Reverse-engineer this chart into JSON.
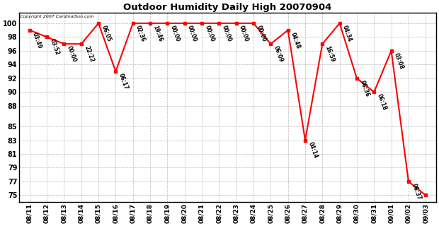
{
  "title": "Outdoor Humidity Daily High 20070904",
  "dates": [
    "08/11",
    "08/12",
    "08/13",
    "08/14",
    "08/15",
    "08/16",
    "08/17",
    "08/18",
    "08/19",
    "08/20",
    "08/21",
    "08/22",
    "08/23",
    "08/24",
    "08/25",
    "08/26",
    "08/27",
    "08/28",
    "08/29",
    "08/30",
    "08/31",
    "09/01",
    "09/02",
    "09/03"
  ],
  "values": [
    99,
    98,
    97,
    97,
    100,
    93,
    100,
    100,
    100,
    100,
    100,
    100,
    100,
    100,
    97,
    99,
    83,
    97,
    100,
    92,
    90,
    96,
    77,
    75
  ],
  "time_labels": [
    "03:49",
    "03:52",
    "00:00",
    "22:22",
    "06:05",
    "06:17",
    "02:36",
    "19:46",
    "00:00",
    "00:00",
    "00:00",
    "00:00",
    "00:00",
    "00:00",
    "06:09",
    "04:48",
    "04:14",
    "16:59",
    "04:34",
    "06:36",
    "06:18",
    "03:08",
    "06:37",
    ""
  ],
  "line_color": "#ff0000",
  "marker_color": "#ff0000",
  "bg_color": "#ffffff",
  "grid_color": "#b8b8b8",
  "yticks": [
    75,
    77,
    79,
    81,
    83,
    85,
    88,
    90,
    92,
    94,
    96,
    98,
    100
  ],
  "ylim": [
    74.0,
    101.5
  ],
  "xlim": [
    -0.6,
    23.6
  ],
  "copyright_text": "Copyright 2007 CardinalSun.com"
}
